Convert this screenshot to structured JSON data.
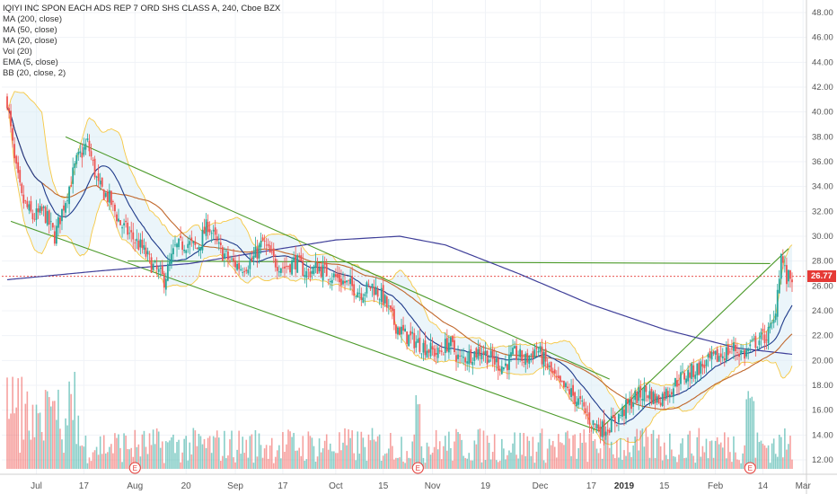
{
  "legend": {
    "title": "IQIYI INC SPON EACH ADS REP 7 ORD SHS CLASS A, 240, Cboe BZX",
    "items": [
      "MA (200, close)",
      "MA (50, close)",
      "MA (20, close)",
      "Vol (20)",
      "EMA (5, close)",
      "BB (20, close, 2)"
    ]
  },
  "last_price": "26.77",
  "earnings_marker": "E",
  "colors": {
    "up": "#26a69a",
    "down": "#ef5350",
    "ma200": "#3f3f99",
    "ma50": "#c0672c",
    "ma20": "#1e3a8a",
    "bb": "#f6c843",
    "bb_fill": "#dbecf6",
    "trend": "#4c9a2a",
    "last": "#e53935"
  },
  "chart_data": {
    "type": "candlestick",
    "title": "IQIYI INC SPON EACH ADS REP 7 ORD SHS CLASS A, 240, Cboe BZX",
    "y_ticks": [
      "48.00",
      "46.00",
      "44.00",
      "42.00",
      "40.00",
      "38.00",
      "36.00",
      "34.00",
      "32.00",
      "30.00",
      "28.00",
      "26.00",
      "24.00",
      "22.00",
      "20.00",
      "18.00",
      "16.00",
      "14.00",
      "12.00"
    ],
    "ylim": [
      12,
      49
    ],
    "x_ticks": [
      "Jul",
      "17",
      "Aug",
      "20",
      "Sep",
      "17",
      "Oct",
      "15",
      "Nov",
      "19",
      "Dec",
      "17",
      "2019",
      "15",
      "Feb",
      "14",
      "Mar"
    ],
    "x_tick_bold": "2019",
    "anchors": [
      {
        "i": 0,
        "p": 41
      },
      {
        "i": 4,
        "p": 36
      },
      {
        "i": 8,
        "p": 33
      },
      {
        "i": 14,
        "p": 31.5
      },
      {
        "i": 20,
        "p": 32
      },
      {
        "i": 26,
        "p": 30
      },
      {
        "i": 32,
        "p": 33
      },
      {
        "i": 38,
        "p": 36
      },
      {
        "i": 44,
        "p": 37.5
      },
      {
        "i": 50,
        "p": 34
      },
      {
        "i": 56,
        "p": 33
      },
      {
        "i": 62,
        "p": 31
      },
      {
        "i": 68,
        "p": 30
      },
      {
        "i": 74,
        "p": 29
      },
      {
        "i": 80,
        "p": 27.5
      },
      {
        "i": 86,
        "p": 26.5
      },
      {
        "i": 92,
        "p": 29
      },
      {
        "i": 98,
        "p": 29.5
      },
      {
        "i": 104,
        "p": 29
      },
      {
        "i": 110,
        "p": 31
      },
      {
        "i": 116,
        "p": 29
      },
      {
        "i": 122,
        "p": 28
      },
      {
        "i": 128,
        "p": 27.5
      },
      {
        "i": 134,
        "p": 28
      },
      {
        "i": 140,
        "p": 29.5
      },
      {
        "i": 146,
        "p": 28
      },
      {
        "i": 152,
        "p": 27.5
      },
      {
        "i": 158,
        "p": 28
      },
      {
        "i": 164,
        "p": 27
      },
      {
        "i": 170,
        "p": 27.5
      },
      {
        "i": 176,
        "p": 27
      },
      {
        "i": 182,
        "p": 26.5
      },
      {
        "i": 188,
        "p": 26
      },
      {
        "i": 194,
        "p": 25.5
      },
      {
        "i": 200,
        "p": 26
      },
      {
        "i": 206,
        "p": 25
      },
      {
        "i": 212,
        "p": 23
      },
      {
        "i": 218,
        "p": 22
      },
      {
        "i": 224,
        "p": 21.5
      },
      {
        "i": 230,
        "p": 21
      },
      {
        "i": 236,
        "p": 20.5
      },
      {
        "i": 242,
        "p": 21.5
      },
      {
        "i": 248,
        "p": 20
      },
      {
        "i": 254,
        "p": 20.5
      },
      {
        "i": 260,
        "p": 20.8
      },
      {
        "i": 266,
        "p": 20
      },
      {
        "i": 272,
        "p": 19.5
      },
      {
        "i": 278,
        "p": 20.5
      },
      {
        "i": 284,
        "p": 20
      },
      {
        "i": 290,
        "p": 21
      },
      {
        "i": 296,
        "p": 19.5
      },
      {
        "i": 302,
        "p": 18
      },
      {
        "i": 308,
        "p": 17.5
      },
      {
        "i": 314,
        "p": 16.5
      },
      {
        "i": 320,
        "p": 15
      },
      {
        "i": 326,
        "p": 14.5
      },
      {
        "i": 332,
        "p": 15
      },
      {
        "i": 338,
        "p": 16
      },
      {
        "i": 344,
        "p": 17
      },
      {
        "i": 350,
        "p": 17.5
      },
      {
        "i": 356,
        "p": 16.8
      },
      {
        "i": 362,
        "p": 17.5
      },
      {
        "i": 368,
        "p": 18.5
      },
      {
        "i": 374,
        "p": 19
      },
      {
        "i": 380,
        "p": 19.5
      },
      {
        "i": 386,
        "p": 20
      },
      {
        "i": 392,
        "p": 20.5
      },
      {
        "i": 398,
        "p": 21
      },
      {
        "i": 404,
        "p": 20.5
      },
      {
        "i": 410,
        "p": 21.5
      },
      {
        "i": 416,
        "p": 22
      },
      {
        "i": 420,
        "p": 23
      },
      {
        "i": 424,
        "p": 28.5
      },
      {
        "i": 427,
        "p": 26.5
      },
      {
        "i": 430,
        "p": 26.8
      }
    ],
    "bar_count": 431,
    "ma200": [
      {
        "i": 0,
        "p": 26.5
      },
      {
        "i": 50,
        "p": 27.2
      },
      {
        "i": 100,
        "p": 27.8
      },
      {
        "i": 150,
        "p": 29
      },
      {
        "i": 180,
        "p": 29.7
      },
      {
        "i": 215,
        "p": 30.0
      },
      {
        "i": 240,
        "p": 29.3
      },
      {
        "i": 280,
        "p": 27.0
      },
      {
        "i": 320,
        "p": 24.5
      },
      {
        "i": 360,
        "p": 22.5
      },
      {
        "i": 400,
        "p": 21
      },
      {
        "i": 430,
        "p": 20.5
      }
    ],
    "trendlines": [
      {
        "from": {
          "i": 32,
          "p": 38
        },
        "to": {
          "i": 330,
          "p": 18.5
        }
      },
      {
        "from": {
          "i": 2,
          "p": 31.2
        },
        "to": {
          "i": 325,
          "p": 14.3
        }
      },
      {
        "from": {
          "i": 66,
          "p": 28
        },
        "to": {
          "i": 418,
          "p": 27.8
        }
      },
      {
        "from": {
          "i": 325,
          "p": 14.5
        },
        "to": {
          "i": 428,
          "p": 29
        }
      }
    ],
    "earnings": [
      {
        "i": 70
      },
      {
        "i": 225
      },
      {
        "i": 407
      }
    ]
  }
}
